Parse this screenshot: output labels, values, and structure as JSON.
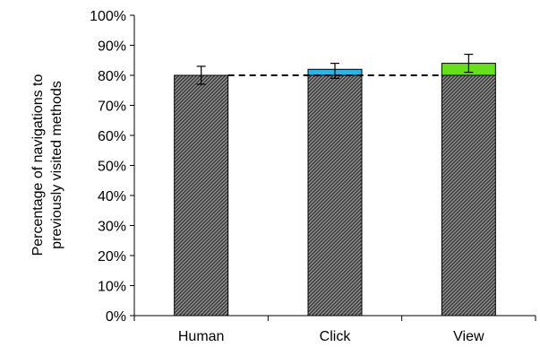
{
  "chart_data": {
    "type": "bar",
    "title": "",
    "xlabel": "",
    "ylabel_lines": [
      "Percentage of navigations to",
      "previously visited methods"
    ],
    "categories": [
      "Human",
      "Click",
      "View"
    ],
    "ylim": [
      0,
      100
    ],
    "yticks": [
      0,
      10,
      20,
      30,
      40,
      50,
      60,
      70,
      80,
      90,
      100
    ],
    "ytick_labels": [
      "0%",
      "10%",
      "20%",
      "30%",
      "40%",
      "50%",
      "60%",
      "70%",
      "80%",
      "90%",
      "100%"
    ],
    "series": [
      {
        "values": [
          80,
          80,
          80
        ],
        "color": "#5a5a5a",
        "pattern": "diagonal-hatch"
      },
      {
        "values": [
          0,
          2,
          4
        ],
        "colors": [
          "#ffffff",
          "#29b6e6",
          "#66e01a"
        ]
      }
    ],
    "totals": [
      80,
      82,
      84
    ],
    "error_bars": [
      {
        "low": 77,
        "high": 83
      },
      {
        "low": 79,
        "high": 84
      },
      {
        "low": 81,
        "high": 87
      }
    ],
    "reference_line": {
      "value": 80,
      "style": "dashed"
    },
    "grid": false,
    "legend": "none"
  }
}
